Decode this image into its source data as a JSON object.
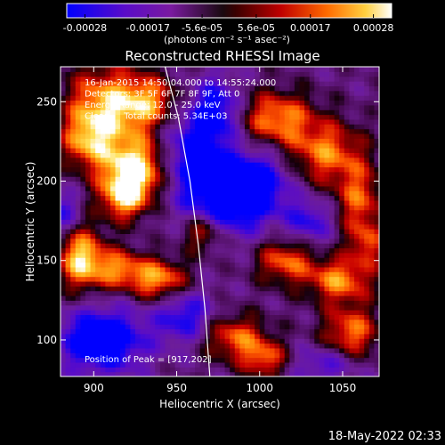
{
  "chart_data": {
    "type": "heatmap",
    "title": "Reconstructed RHESSI Image",
    "xlabel": "Heliocentric X (arcsec)",
    "ylabel": "Heliocentric Y (arcsec)",
    "xlim": [
      880,
      1072
    ],
    "ylim": [
      77,
      272
    ],
    "xticks": [
      900,
      950,
      1000,
      1050
    ],
    "yticks": [
      100,
      150,
      200,
      250
    ],
    "colorbar": {
      "label": "(photons cm⁻² s⁻¹ asec⁻²)",
      "range": [
        -0.00028,
        0.00028
      ],
      "ticks": [
        "-0.00028",
        "-0.00017",
        "-5.6e-05",
        "5.6e-05",
        "0.00017",
        "0.00028"
      ]
    },
    "annotations": [
      "16-Jan-2015 14:50:04.000 to 14:55:24.000",
      "Detectors: 3F 5F 6F 7F 8F 9F, Att 0",
      "Energy Range: 12.0 - 25.0 keV",
      "Clean     Total counts: 5.34E+03"
    ],
    "peak_label": "Position of Peak = [917,202]",
    "limb_curve": [
      [
        943,
        272
      ],
      [
        951,
        240
      ],
      [
        958,
        200
      ],
      [
        963,
        160
      ],
      [
        967,
        120
      ],
      [
        970,
        77
      ]
    ],
    "emission_blobs": [
      {
        "x": 905,
        "y": 245,
        "sx": 16,
        "sy": 20,
        "a": 1.0
      },
      {
        "x": 933,
        "y": 250,
        "sx": 14,
        "sy": 12,
        "a": 0.9
      },
      {
        "x": 925,
        "y": 208,
        "sx": 14,
        "sy": 14,
        "a": 1.25
      },
      {
        "x": 918,
        "y": 190,
        "sx": 10,
        "sy": 10,
        "a": 0.9
      },
      {
        "x": 895,
        "y": 225,
        "sx": 10,
        "sy": 12,
        "a": 0.6
      },
      {
        "x": 892,
        "y": 152,
        "sx": 10,
        "sy": 14,
        "a": 1.1
      },
      {
        "x": 915,
        "y": 145,
        "sx": 12,
        "sy": 9,
        "a": 0.8
      },
      {
        "x": 940,
        "y": 138,
        "sx": 12,
        "sy": 9,
        "a": 0.95
      },
      {
        "x": 965,
        "y": 168,
        "sx": 9,
        "sy": 9,
        "a": 0.7
      },
      {
        "x": 1010,
        "y": 240,
        "sx": 16,
        "sy": 12,
        "a": 0.9
      },
      {
        "x": 1040,
        "y": 218,
        "sx": 16,
        "sy": 14,
        "a": 0.85
      },
      {
        "x": 1060,
        "y": 188,
        "sx": 10,
        "sy": 16,
        "a": 0.75
      },
      {
        "x": 1015,
        "y": 150,
        "sx": 12,
        "sy": 10,
        "a": 0.8
      },
      {
        "x": 1048,
        "y": 138,
        "sx": 14,
        "sy": 10,
        "a": 0.9
      },
      {
        "x": 1055,
        "y": 105,
        "sx": 12,
        "sy": 12,
        "a": 0.85
      },
      {
        "x": 985,
        "y": 102,
        "sx": 14,
        "sy": 10,
        "a": 0.8
      },
      {
        "x": 1003,
        "y": 88,
        "sx": 10,
        "sy": 8,
        "a": 0.75
      },
      {
        "x": 1065,
        "y": 160,
        "sx": 8,
        "sy": 10,
        "a": 0.6
      },
      {
        "x": 905,
        "y": 100,
        "sx": 18,
        "sy": 14,
        "a": -1.1
      },
      {
        "x": 960,
        "y": 215,
        "sx": 14,
        "sy": 24,
        "a": -0.85
      },
      {
        "x": 985,
        "y": 190,
        "sx": 16,
        "sy": 16,
        "a": -0.95
      },
      {
        "x": 1000,
        "y": 200,
        "sx": 14,
        "sy": 14,
        "a": -0.6
      },
      {
        "x": 955,
        "y": 115,
        "sx": 12,
        "sy": 12,
        "a": -0.7
      },
      {
        "x": 1030,
        "y": 175,
        "sx": 10,
        "sy": 10,
        "a": -0.6
      },
      {
        "x": 1040,
        "y": 85,
        "sx": 14,
        "sy": 8,
        "a": -0.5
      },
      {
        "x": 880,
        "y": 180,
        "sx": 8,
        "sy": 10,
        "a": -0.6
      },
      {
        "x": 975,
        "y": 245,
        "sx": 10,
        "sy": 14,
        "a": -0.7
      }
    ]
  },
  "footer": {
    "timestamp": "18-May-2022 02:33"
  }
}
